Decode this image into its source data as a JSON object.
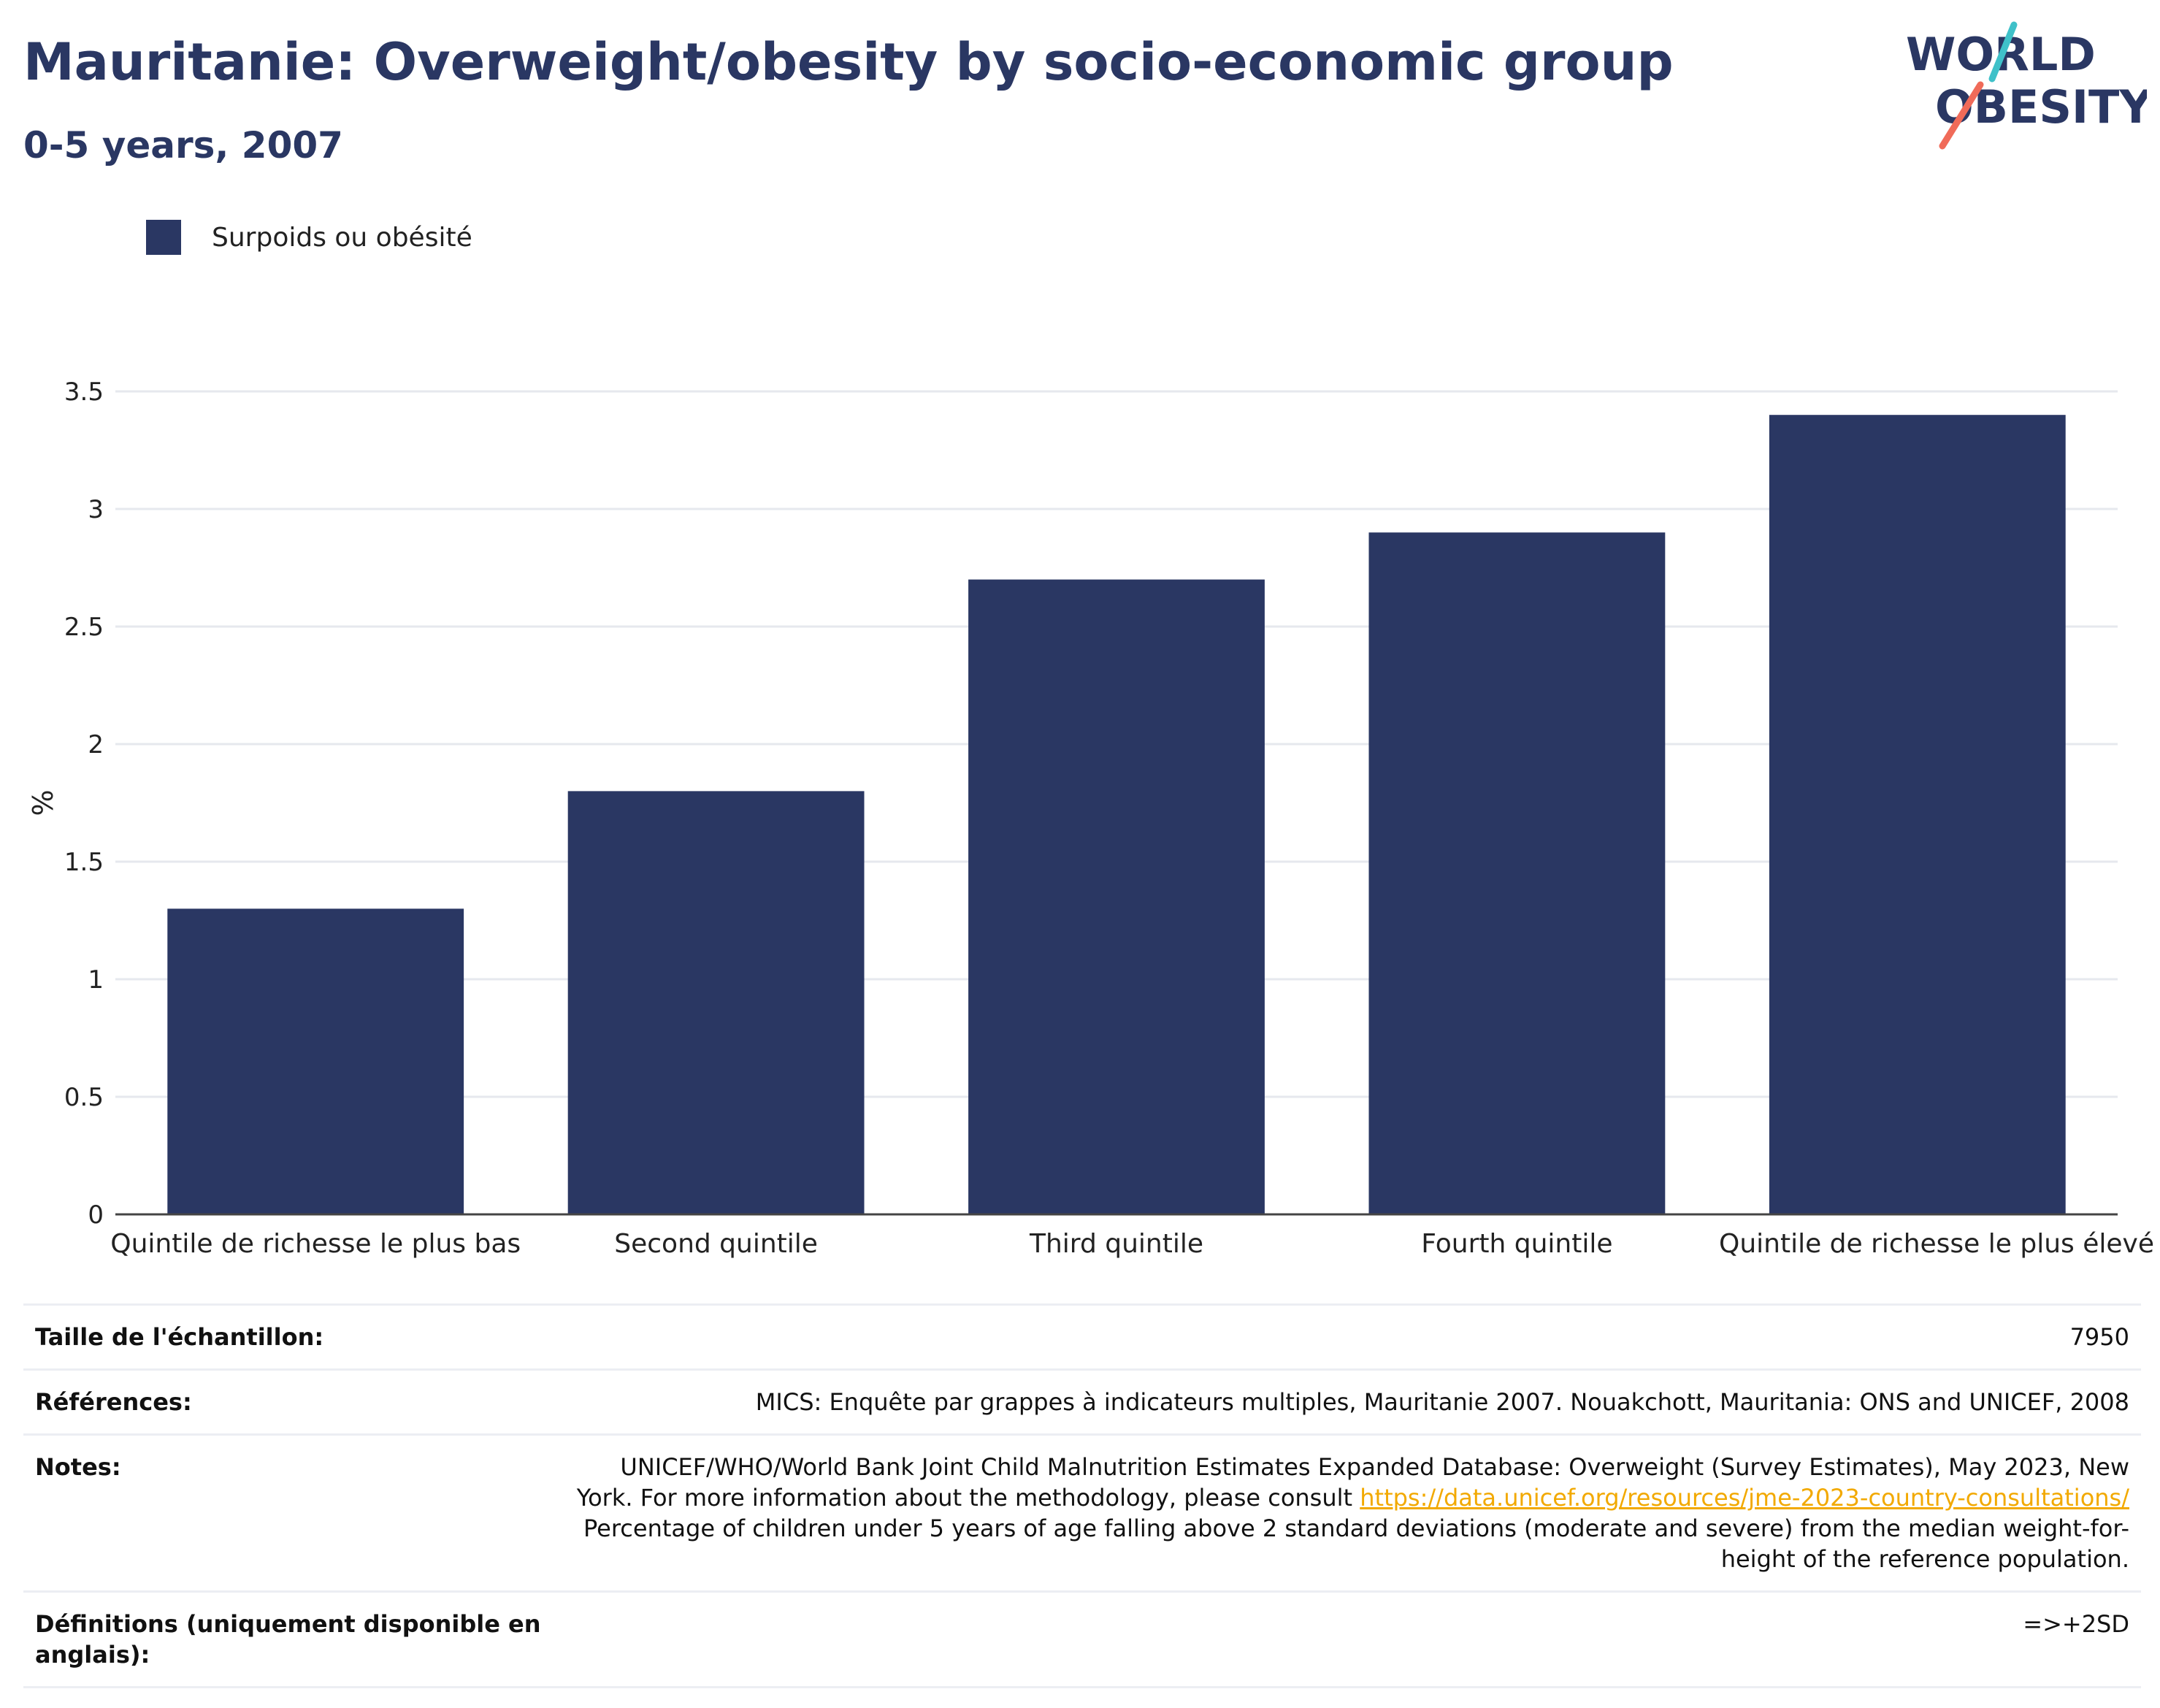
{
  "header": {
    "title": "Mauritanie: Overweight/obesity by socio-economic group",
    "subtitle": "0-5 years, 2007"
  },
  "logo": {
    "line1": "WORLD",
    "line2": "OBESITY",
    "colors": {
      "navy": "#2a3763",
      "teal": "#3fc1c9",
      "coral": "#f06b59"
    }
  },
  "legend": {
    "label": "Surpoids ou obésité",
    "color": "#2a3763"
  },
  "chart_data": {
    "type": "bar",
    "categories": [
      "Quintile de richesse le plus bas",
      "Second quintile",
      "Third quintile",
      "Fourth quintile",
      "Quintile de richesse le plus élevé"
    ],
    "series": [
      {
        "name": "Surpoids ou obésité",
        "values": [
          1.3,
          1.8,
          2.7,
          2.9,
          3.4
        ],
        "color": "#2a3763"
      }
    ],
    "ylabel": "%",
    "ylim": [
      0,
      3.5
    ],
    "yticks": [
      0,
      0.5,
      1,
      1.5,
      2,
      2.5,
      3,
      3.5
    ],
    "ytick_labels": [
      "0",
      "0.5",
      "1",
      "1.5",
      "2",
      "2.5",
      "3",
      "3.5"
    ],
    "grid": true
  },
  "info_table": {
    "sample": {
      "label": "Taille de l'échantillon:",
      "value": "7950"
    },
    "references": {
      "label": "Références:",
      "value": "MICS: Enquête par grappes à indicateurs multiples, Mauritanie 2007. Nouakchott, Mauritania: ONS and UNICEF, 2008"
    },
    "notes": {
      "label": "Notes:",
      "line1": "UNICEF/WHO/World Bank Joint Child Malnutrition Estimates Expanded Database: Overweight (Survey Estimates), May 2023, New",
      "line2_prefix": "York. For more information about the methodology, please consult ",
      "link": "https://data.unicef.org/resources/jme-2023-country-consultations/",
      "line3": "Percentage of children under 5 years of age falling above 2 standard deviations (moderate and severe) from the median weight-for-",
      "line4": "height of the reference population."
    },
    "definitions": {
      "label": "Définitions (uniquement disponible en anglais):",
      "value": "=>+2SD"
    }
  }
}
